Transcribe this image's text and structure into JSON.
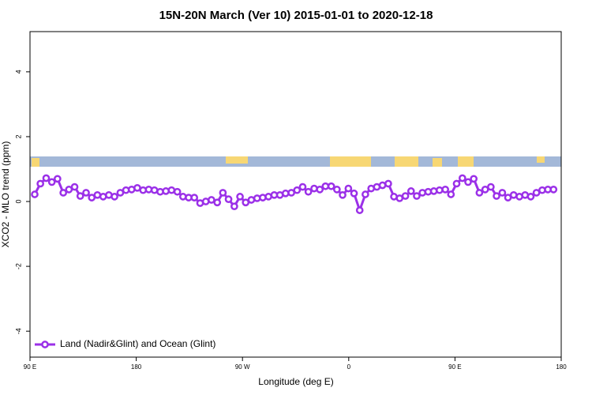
{
  "chart_data": {
    "type": "line",
    "title": "15N-20N March (Ver 10)   2015-01-01 to 2020-12-18",
    "xlabel": "Longitude (deg E)",
    "ylabel": "XCO2 - MLO trend (ppm)",
    "xlim": [
      90,
      540
    ],
    "ylim": [
      -4.8,
      5.24
    ],
    "xticks": [
      {
        "value": 90,
        "label": "90 E"
      },
      {
        "value": 180,
        "label": "180"
      },
      {
        "value": 270,
        "label": "90 W"
      },
      {
        "value": 360,
        "label": "0"
      },
      {
        "value": 450,
        "label": "90 E"
      },
      {
        "value": 540,
        "label": "180"
      }
    ],
    "yticks": [
      -4,
      -2,
      0,
      2,
      4
    ],
    "legend": "bottom-left",
    "series": [
      {
        "name": "Land (Nadir&Glint) and Ocean (Glint)",
        "color": "#9b30e8",
        "x": [
          94.0,
          98.8,
          103.7,
          108.5,
          113.3,
          118.2,
          123.0,
          127.8,
          132.6,
          137.5,
          142.3,
          147.1,
          152.0,
          156.8,
          161.6,
          166.5,
          171.3,
          176.1,
          180.9,
          185.8,
          190.6,
          195.4,
          200.3,
          205.1,
          209.9,
          214.8,
          219.6,
          224.4,
          229.2,
          234.1,
          238.9,
          243.7,
          248.6,
          253.4,
          258.2,
          263.1,
          267.9,
          272.7,
          277.5,
          282.4,
          287.2,
          292.0,
          296.9,
          301.7,
          306.5,
          311.4,
          316.2,
          321.0,
          325.8,
          330.7,
          335.5,
          340.3,
          345.2,
          350.0,
          354.8,
          359.7,
          364.5,
          369.3,
          374.1,
          379.0,
          383.8,
          388.6,
          393.5,
          398.3,
          403.1,
          408.0,
          412.8,
          417.6,
          422.4,
          427.3,
          432.1,
          436.9,
          441.8,
          446.6,
          451.4,
          456.3,
          461.1,
          465.9,
          470.7,
          475.6,
          480.4,
          485.2,
          490.1,
          494.9,
          499.7,
          504.6,
          509.4,
          514.2,
          519.0,
          523.9,
          528.7,
          533.5
        ],
        "values": [
          0.22,
          0.55,
          0.72,
          0.6,
          0.7,
          0.27,
          0.37,
          0.45,
          0.17,
          0.27,
          0.12,
          0.2,
          0.15,
          0.2,
          0.15,
          0.27,
          0.35,
          0.37,
          0.42,
          0.35,
          0.37,
          0.35,
          0.3,
          0.32,
          0.35,
          0.3,
          0.15,
          0.12,
          0.12,
          -0.05,
          0,
          0.05,
          -0.03,
          0.27,
          0.07,
          -0.15,
          0.15,
          -0.03,
          0.05,
          0.1,
          0.12,
          0.15,
          0.2,
          0.2,
          0.25,
          0.27,
          0.35,
          0.45,
          0.3,
          0.4,
          0.37,
          0.47,
          0.47,
          0.37,
          0.2,
          0.4,
          0.25,
          -0.27,
          0.22,
          0.4,
          0.45,
          0.5,
          0.55,
          0.15,
          0.1,
          0.17,
          0.32,
          0.17,
          0.27,
          0.3,
          0.32,
          0.35,
          0.37,
          0.22,
          0.55,
          0.72,
          0.6,
          0.7,
          0.27,
          0.37,
          0.45,
          0.17,
          0.27,
          0.12,
          0.2,
          0.15,
          0.2,
          0.15,
          0.27,
          0.35,
          0.37,
          0.37
        ]
      }
    ]
  }
}
